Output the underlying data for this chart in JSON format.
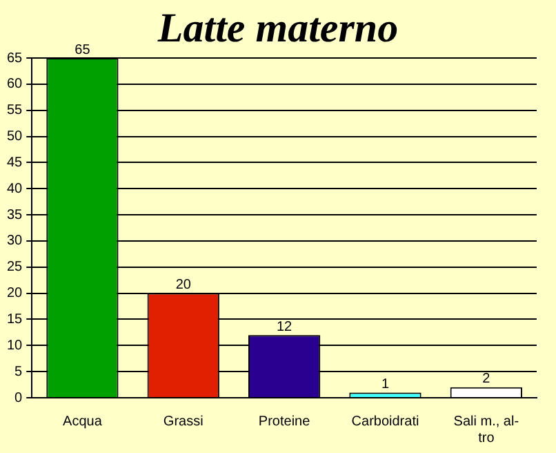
{
  "chart_data": {
    "type": "bar",
    "title": "Latte materno",
    "categories": [
      "Acqua",
      "Grassi",
      "Proteine",
      "Carboidrati",
      "Sali m., al-tro"
    ],
    "values": [
      65,
      20,
      12,
      1,
      2
    ],
    "colors": [
      "#00a000",
      "#e02000",
      "#2a0090",
      "#40ffff",
      "#ffffff"
    ],
    "ylim": [
      0,
      65
    ],
    "yticks": [
      0,
      5,
      10,
      15,
      20,
      25,
      30,
      35,
      40,
      45,
      50,
      55,
      60,
      65
    ],
    "grid": "y",
    "data_labels": true,
    "legend": false
  }
}
